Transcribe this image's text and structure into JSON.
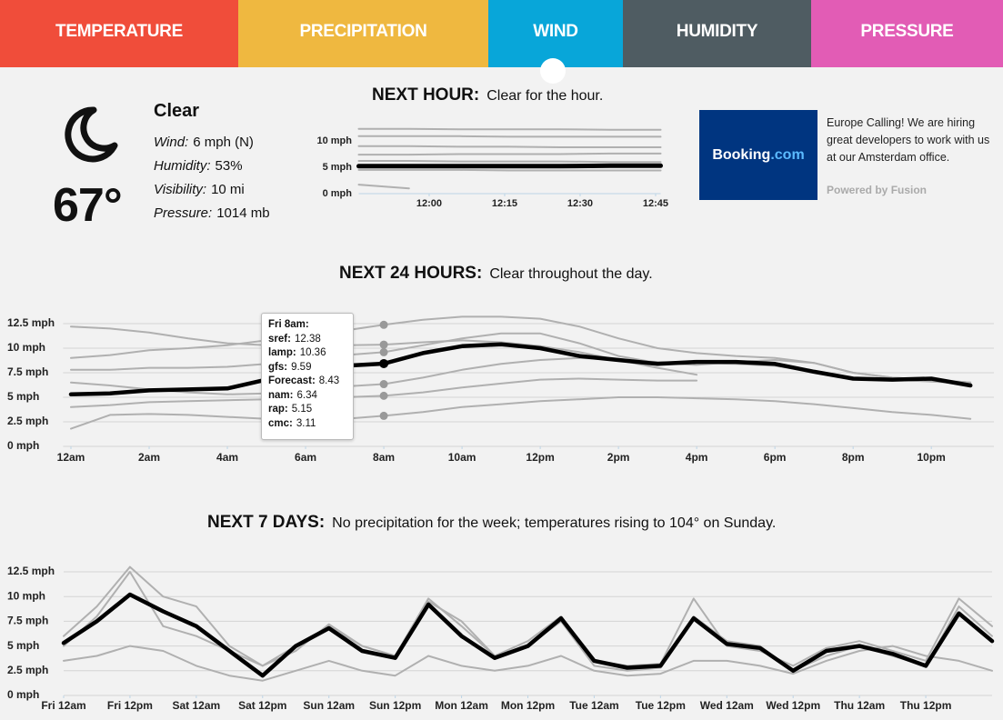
{
  "tabs": [
    "TEMPERATURE",
    "PRECIPITATION",
    "WIND",
    "HUMIDITY",
    "PRESSURE"
  ],
  "current": {
    "summary": "Clear",
    "temperature": "67°",
    "details": [
      {
        "label": "Wind:",
        "value": "6 mph (N)"
      },
      {
        "label": "Humidity:",
        "value": "53%"
      },
      {
        "label": "Visibility:",
        "value": "10 mi"
      },
      {
        "label": "Pressure:",
        "value": "1014 mb"
      }
    ]
  },
  "ad": {
    "brand": "Booking",
    "brand_suffix": ".com",
    "text": "Europe Calling! We are hiring great developers to work with us at our Amsterdam office.",
    "powered_by": "Powered by Fusion"
  },
  "next_hour": {
    "heading": "NEXT HOUR:",
    "summary": "Clear for the hour.",
    "chart": {
      "type": "line",
      "x": [
        -14,
        -4,
        6,
        16,
        26,
        36,
        46
      ],
      "xlim": [
        -14,
        46
      ],
      "xticks": [
        {
          "value": 0,
          "label": "12:00"
        },
        {
          "value": 15,
          "label": "12:15"
        },
        {
          "value": 30,
          "label": "12:30"
        },
        {
          "value": 45,
          "label": "12:45"
        }
      ],
      "ylim": [
        0,
        13
      ],
      "yticks": [
        {
          "value": 0,
          "label": "0 mph"
        },
        {
          "value": 5,
          "label": "5 mph"
        },
        {
          "value": 10,
          "label": "10 mph"
        }
      ],
      "grid": false,
      "series": [
        {
          "color": "#b0b0b0",
          "values": [
            12.3,
            12.3,
            12.2,
            12.2,
            12.2,
            12.1,
            12.1
          ]
        },
        {
          "color": "#b0b0b0",
          "values": [
            10.9,
            10.9,
            10.9,
            10.8,
            10.8,
            10.8,
            10.8
          ]
        },
        {
          "color": "#b0b0b0",
          "values": [
            9.0,
            9.0,
            8.9,
            8.9,
            8.8,
            8.8,
            8.8
          ]
        },
        {
          "color": "#b0b0b0",
          "values": [
            7.4,
            7.4,
            7.5,
            7.5,
            7.5,
            7.6,
            7.6
          ]
        },
        {
          "color": "#b0b0b0",
          "values": [
            6.2,
            6.2,
            6.1,
            6.1,
            6.1,
            6.0,
            6.0
          ]
        },
        {
          "color": "#b0b0b0",
          "values": [
            4.5,
            4.5,
            4.5,
            4.4,
            4.4,
            4.4,
            4.4
          ]
        },
        {
          "color": "#b0b0b0",
          "values": [
            1.7,
            1.0,
            null,
            null,
            null,
            null,
            null
          ]
        },
        {
          "color": "#000000",
          "values": [
            5.2,
            5.2,
            5.2,
            5.2,
            5.2,
            5.3,
            5.3
          ]
        }
      ]
    }
  },
  "next_24_hours": {
    "heading": "NEXT 24 HOURS:",
    "summary": "Clear throughout the day.",
    "tooltip_title": "Fri 8am:",
    "chart": {
      "type": "line",
      "x": [
        0,
        1,
        2,
        3,
        4,
        5,
        6,
        7,
        8,
        9,
        10,
        11,
        12,
        13,
        14,
        15,
        16,
        17,
        18,
        19,
        20,
        21,
        22,
        23
      ],
      "xlim": [
        -0.2,
        23.6
      ],
      "xticks": [
        {
          "value": 0,
          "label": "12am"
        },
        {
          "value": 2,
          "label": "2am"
        },
        {
          "value": 4,
          "label": "4am"
        },
        {
          "value": 6,
          "label": "6am"
        },
        {
          "value": 8,
          "label": "8am"
        },
        {
          "value": 10,
          "label": "10am"
        },
        {
          "value": 12,
          "label": "12pm"
        },
        {
          "value": 14,
          "label": "2pm"
        },
        {
          "value": 16,
          "label": "4pm"
        },
        {
          "value": 18,
          "label": "6pm"
        },
        {
          "value": 20,
          "label": "8pm"
        },
        {
          "value": 22,
          "label": "10pm"
        }
      ],
      "ylim": [
        0,
        12.5
      ],
      "yticks": [
        {
          "value": 0,
          "label": "0 mph"
        },
        {
          "value": 2.5,
          "label": "2.5 mph"
        },
        {
          "value": 5,
          "label": "5 mph"
        },
        {
          "value": 7.5,
          "label": "7.5 mph"
        },
        {
          "value": 10,
          "label": "10 mph"
        },
        {
          "value": 12.5,
          "label": "12.5 mph"
        }
      ],
      "grid": true,
      "series": [
        {
          "name": "sref",
          "color": "#b0b0b0",
          "values": [
            9,
            9.3,
            9.8,
            10,
            10.3,
            10.8,
            11.3,
            11.8,
            12.38,
            12.9,
            13.2,
            13.2,
            13.0,
            12.2,
            11,
            10,
            9.5,
            9.2,
            9,
            8.5,
            7.5,
            7,
            6.8,
            6.5
          ]
        },
        {
          "name": "lamp",
          "color": "#b0b0b0",
          "values": [
            12.2,
            12,
            11.6,
            11,
            10.5,
            10.3,
            10.3,
            10.3,
            10.36,
            10.6,
            10.8,
            10.6,
            10.2,
            9.6,
            8.8,
            8.0,
            7.3,
            null,
            null,
            null,
            null,
            null,
            null,
            null
          ]
        },
        {
          "name": "gfs",
          "color": "#b0b0b0",
          "values": [
            7.8,
            7.8,
            8,
            8,
            8.1,
            8.4,
            8.9,
            9.3,
            9.59,
            10.3,
            11,
            11.5,
            11.5,
            10.5,
            9.2,
            8.5,
            8.3,
            8.6,
            8.8,
            8.5,
            7.5,
            7,
            6.8,
            6.5
          ]
        },
        {
          "name": "Forecast",
          "color": "#000000",
          "values": [
            5.3,
            5.4,
            5.7,
            5.8,
            5.9,
            6.8,
            7.8,
            8.2,
            8.43,
            9.5,
            10.2,
            10.4,
            10.0,
            9.2,
            8.8,
            8.4,
            8.6,
            8.6,
            8.4,
            7.6,
            6.9,
            6.8,
            6.9,
            6.2
          ]
        },
        {
          "name": "nam",
          "color": "#b0b0b0",
          "values": [
            6.5,
            6.2,
            5.8,
            5.5,
            5.3,
            5.4,
            5.8,
            6.1,
            6.34,
            7,
            7.8,
            8.4,
            8.8,
            9,
            8.8,
            8.6,
            8.5,
            8.4,
            8.2,
            7.6,
            7,
            6.8,
            6.6,
            6.4
          ]
        },
        {
          "name": "rap",
          "color": "#b0b0b0",
          "values": [
            4,
            4.2,
            4.5,
            4.6,
            4.7,
            4.8,
            4.9,
            5,
            5.15,
            5.5,
            6,
            6.4,
            6.8,
            6.9,
            6.8,
            6.7,
            6.7,
            null,
            null,
            null,
            null,
            null,
            null,
            null
          ]
        },
        {
          "name": "cmc",
          "color": "#b0b0b0",
          "values": [
            1.8,
            3.2,
            3.3,
            3.2,
            3,
            2.8,
            2.7,
            2.8,
            3.11,
            3.5,
            4,
            4.3,
            4.6,
            4.8,
            5,
            5,
            4.9,
            4.8,
            4.6,
            4.3,
            3.9,
            3.5,
            3.2,
            2.8
          ]
        }
      ]
    }
  },
  "next_7_days": {
    "heading": "NEXT 7 DAYS:",
    "summary": "No precipitation for the week; temperatures rising to 104° on Sunday.",
    "chart": {
      "type": "line",
      "x": [
        0,
        6,
        12,
        18,
        24,
        30,
        36,
        42,
        48,
        54,
        60,
        66,
        72,
        78,
        84,
        90,
        96,
        102,
        108,
        114,
        120,
        126,
        132,
        138,
        144,
        150,
        156,
        162,
        168
      ],
      "xlim": [
        0,
        168
      ],
      "xticks": [
        {
          "value": 0,
          "label": "Fri 12am"
        },
        {
          "value": 12,
          "label": "Fri 12pm"
        },
        {
          "value": 24,
          "label": "Sat 12am"
        },
        {
          "value": 36,
          "label": "Sat 12pm"
        },
        {
          "value": 48,
          "label": "Sun 12am"
        },
        {
          "value": 60,
          "label": "Sun 12pm"
        },
        {
          "value": 72,
          "label": "Mon 12am"
        },
        {
          "value": 84,
          "label": "Mon 12pm"
        },
        {
          "value": 96,
          "label": "Tue 12am"
        },
        {
          "value": 108,
          "label": "Tue 12pm"
        },
        {
          "value": 120,
          "label": "Wed 12am"
        },
        {
          "value": 132,
          "label": "Wed 12pm"
        },
        {
          "value": 144,
          "label": "Thu 12am"
        },
        {
          "value": 156,
          "label": "Thu 12pm"
        }
      ],
      "ylim": [
        0,
        12.5
      ],
      "yticks": [
        {
          "value": 0,
          "label": "0 mph"
        },
        {
          "value": 2.5,
          "label": "2.5 mph"
        },
        {
          "value": 5,
          "label": "5 mph"
        },
        {
          "value": 7.5,
          "label": "7.5 mph"
        },
        {
          "value": 10,
          "label": "10 mph"
        },
        {
          "value": 12.5,
          "label": "12.5 mph"
        }
      ],
      "grid": true,
      "series": [
        {
          "color": "#b0b0b0",
          "values": [
            6,
            9,
            13,
            10,
            9,
            5,
            3,
            5,
            7,
            5,
            4,
            9.8,
            7,
            4,
            5.5,
            8,
            3.5,
            3,
            3.2,
            9.8,
            5,
            4.5,
            3,
            4.8,
            5.5,
            4.5,
            3.5,
            9.8,
            7
          ]
        },
        {
          "color": "#b0b0b0",
          "values": [
            5,
            8,
            12.5,
            7,
            6,
            4.5,
            3,
            4.5,
            7.2,
            5,
            4,
            9.5,
            7.5,
            4,
            5,
            7.5,
            3,
            2.5,
            2.8,
            8,
            5.5,
            5,
            2.5,
            4,
            5,
            4,
            3,
            9,
            6
          ]
        },
        {
          "color": "#b0b0b0",
          "values": [
            3.5,
            4,
            5,
            4.5,
            3,
            2,
            1.5,
            2.5,
            3.5,
            2.5,
            2,
            4,
            3,
            2.5,
            3,
            4,
            2.5,
            2,
            2.2,
            3.5,
            3.5,
            3,
            2.2,
            3.5,
            4.5,
            5,
            4,
            3.5,
            2.5
          ]
        },
        {
          "color": "#000000",
          "values": [
            5.3,
            7.5,
            10.2,
            8.5,
            7.0,
            4.5,
            2.0,
            5.0,
            6.8,
            4.5,
            3.8,
            9.2,
            6.0,
            3.8,
            5.0,
            7.8,
            3.5,
            2.8,
            3.0,
            7.8,
            5.2,
            4.8,
            2.5,
            4.5,
            5.0,
            4.2,
            3.0,
            8.3,
            5.5
          ]
        }
      ]
    }
  }
}
